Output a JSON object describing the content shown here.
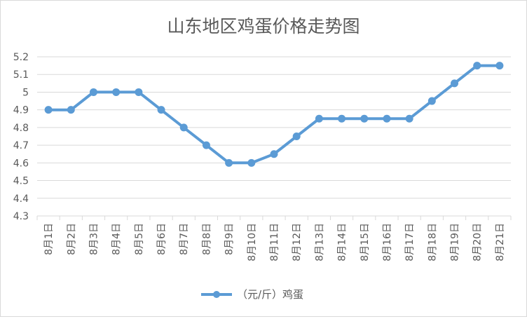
{
  "chart_data": {
    "type": "line",
    "title": "山东地区鸡蛋价格走势图",
    "categories": [
      "8月1日",
      "8月2日",
      "8月3日",
      "8月4日",
      "8月5日",
      "8月6日",
      "8月7日",
      "8月8日",
      "8月9日",
      "8月10日",
      "8月11日",
      "8月12日",
      "8月13日",
      "8月14日",
      "8月15日",
      "8月16日",
      "8月17日",
      "8月18日",
      "8月19日",
      "8月20日",
      "8月21日"
    ],
    "series": [
      {
        "name": "（元/斤）鸡蛋",
        "values": [
          4.9,
          4.9,
          5.0,
          5.0,
          5.0,
          4.9,
          4.8,
          4.7,
          4.6,
          4.6,
          4.65,
          4.75,
          4.85,
          4.85,
          4.85,
          4.85,
          4.85,
          4.95,
          5.05,
          5.15,
          5.15
        ]
      }
    ],
    "ylim": [
      4.3,
      5.2
    ],
    "yticks": [
      "4.3",
      "4.4",
      "4.5",
      "4.6",
      "4.7",
      "4.8",
      "4.9",
      "5",
      "5.1",
      "5.2"
    ],
    "grid": true,
    "legend_position": "bottom",
    "line_color": "#5b9bd5",
    "grid_color": "#d9d9d9",
    "text_color": "#595959"
  }
}
